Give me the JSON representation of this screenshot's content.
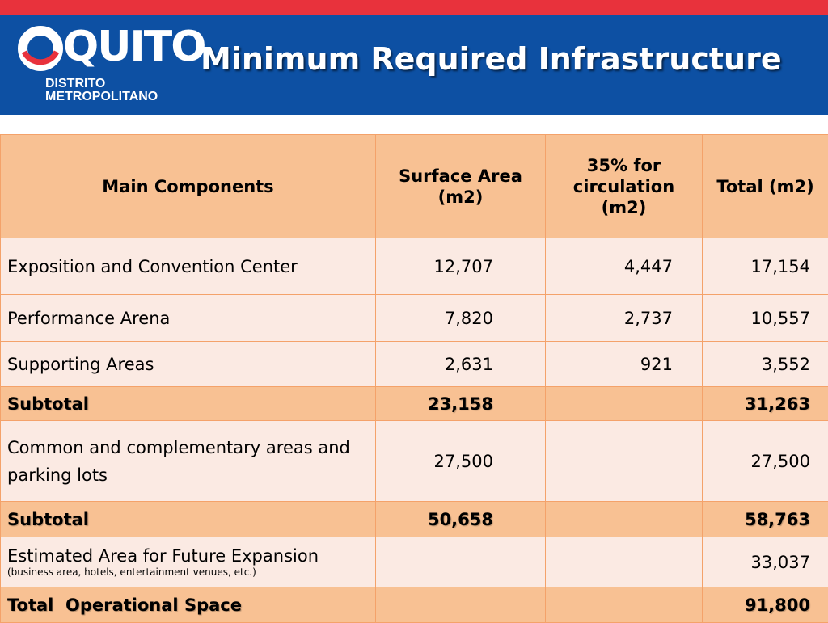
{
  "header": {
    "logo": {
      "word": "QUITO",
      "sub_line1": "DISTRITO",
      "sub_line2": "METROPOLITANO"
    },
    "title": "Minimum Required Infrastructure"
  },
  "colors": {
    "top_stripe": "#e8323c",
    "header_band": "#0d50a3",
    "table_header": "#f8c193",
    "row_light": "#fbeae3",
    "grid_line": "#f4a26a"
  },
  "table": {
    "columns": [
      "Main Components",
      "Surface Area (m2)",
      "35% for circulation (m2)",
      "Total (m2)"
    ],
    "rows": [
      {
        "label": "Exposition and Convention Center",
        "surface": "12,707",
        "circulation": "4,447",
        "total": "17,154"
      },
      {
        "label": "Performance Arena",
        "surface": "7,820",
        "circulation": "2,737",
        "total": "10,557"
      },
      {
        "label": "Supporting Areas",
        "surface": "2,631",
        "circulation": "921",
        "total": "3,552"
      },
      {
        "label": "Subtotal",
        "surface": "23,158",
        "circulation": "",
        "total": "31,263"
      },
      {
        "label": "Common and complementary areas and parking lots",
        "surface": "27,500",
        "circulation": "",
        "total": "27,500"
      },
      {
        "label": "Subtotal",
        "surface": "50,658",
        "circulation": "",
        "total": "58,763"
      },
      {
        "label": "Estimated Area for Future Expansion",
        "note": "(business area, hotels, entertainment venues, etc.)",
        "surface": "",
        "circulation": "",
        "total": "33,037"
      },
      {
        "label": "Total  Operational Space",
        "surface": "",
        "circulation": "",
        "total": "91,800"
      }
    ]
  }
}
